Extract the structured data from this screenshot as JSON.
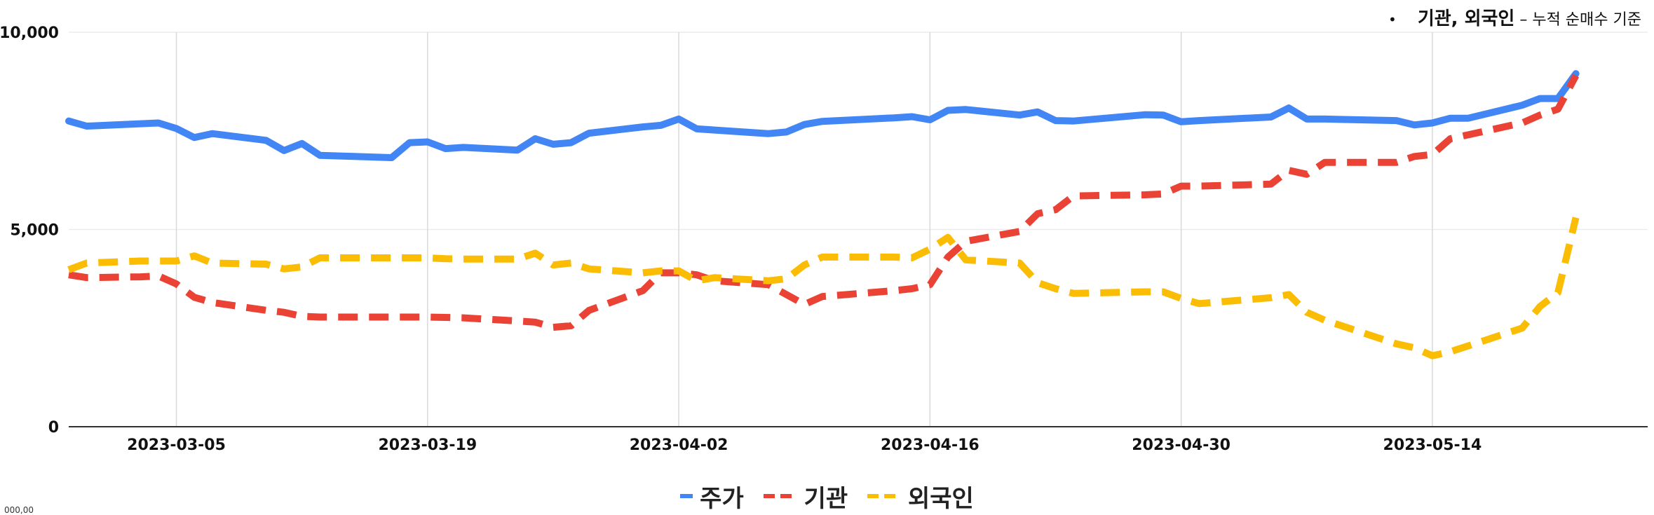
{
  "note": {
    "bullet": "•",
    "title": "기관, 외국인",
    "subtitle": " – 누적 순매수 기준"
  },
  "corner_text": "000,00",
  "colors": {
    "price": "#4285f4",
    "institution": "#ea4335",
    "foreign": "#fbbc04"
  },
  "chart_data": {
    "type": "line",
    "ylim": [
      0,
      10000
    ],
    "yticks": [
      "0",
      "5,000",
      "10,000"
    ],
    "ytick_values": [
      0,
      5000,
      10000
    ],
    "xlim": [
      "2023-02-27",
      "2023-05-26"
    ],
    "xtick_labels": [
      "2023-03-05",
      "2023-03-19",
      "2023-04-02",
      "2023-04-16",
      "2023-04-30",
      "2023-05-14"
    ],
    "grid": true,
    "legend": "bottom",
    "series": [
      {
        "name": "주가",
        "style": "solid",
        "points": [
          [
            "2023-02-27",
            7750
          ],
          [
            "2023-02-28",
            7620
          ],
          [
            "2023-03-03",
            7680
          ],
          [
            "2023-03-04",
            7700
          ],
          [
            "2023-03-05",
            7560
          ],
          [
            "2023-03-06",
            7330
          ],
          [
            "2023-03-07",
            7430
          ],
          [
            "2023-03-10",
            7260
          ],
          [
            "2023-03-11",
            7000
          ],
          [
            "2023-03-12",
            7180
          ],
          [
            "2023-03-13",
            6880
          ],
          [
            "2023-03-17",
            6820
          ],
          [
            "2023-03-18",
            7200
          ],
          [
            "2023-03-19",
            7220
          ],
          [
            "2023-03-20",
            7050
          ],
          [
            "2023-03-21",
            7080
          ],
          [
            "2023-03-24",
            7010
          ],
          [
            "2023-03-25",
            7300
          ],
          [
            "2023-03-26",
            7160
          ],
          [
            "2023-03-27",
            7200
          ],
          [
            "2023-03-28",
            7440
          ],
          [
            "2023-03-31",
            7600
          ],
          [
            "2023-04-01",
            7640
          ],
          [
            "2023-04-02",
            7800
          ],
          [
            "2023-04-03",
            7550
          ],
          [
            "2023-04-04",
            7520
          ],
          [
            "2023-04-07",
            7430
          ],
          [
            "2023-04-08",
            7470
          ],
          [
            "2023-04-09",
            7660
          ],
          [
            "2023-04-10",
            7740
          ],
          [
            "2023-04-14",
            7830
          ],
          [
            "2023-04-15",
            7860
          ],
          [
            "2023-04-16",
            7780
          ],
          [
            "2023-04-17",
            8020
          ],
          [
            "2023-04-18",
            8040
          ],
          [
            "2023-04-21",
            7900
          ],
          [
            "2023-04-22",
            7980
          ],
          [
            "2023-04-23",
            7760
          ],
          [
            "2023-04-24",
            7750
          ],
          [
            "2023-04-28",
            7910
          ],
          [
            "2023-04-29",
            7900
          ],
          [
            "2023-04-30",
            7730
          ],
          [
            "2023-05-01",
            7760
          ],
          [
            "2023-05-05",
            7850
          ],
          [
            "2023-05-06",
            8080
          ],
          [
            "2023-05-07",
            7800
          ],
          [
            "2023-05-08",
            7800
          ],
          [
            "2023-05-12",
            7760
          ],
          [
            "2023-05-13",
            7650
          ],
          [
            "2023-05-14",
            7700
          ],
          [
            "2023-05-15",
            7820
          ],
          [
            "2023-05-16",
            7820
          ],
          [
            "2023-05-19",
            8150
          ],
          [
            "2023-05-20",
            8320
          ],
          [
            "2023-05-21",
            8320
          ],
          [
            "2023-05-22",
            8950
          ]
        ]
      },
      {
        "name": "기관",
        "style": "dashed",
        "points": [
          [
            "2023-02-27",
            3850
          ],
          [
            "2023-02-28",
            3780
          ],
          [
            "2023-03-03",
            3800
          ],
          [
            "2023-03-04",
            3820
          ],
          [
            "2023-03-05",
            3620
          ],
          [
            "2023-03-06",
            3280
          ],
          [
            "2023-03-07",
            3150
          ],
          [
            "2023-03-10",
            2950
          ],
          [
            "2023-03-11",
            2900
          ],
          [
            "2023-03-12",
            2800
          ],
          [
            "2023-03-13",
            2780
          ],
          [
            "2023-03-17",
            2780
          ],
          [
            "2023-03-18",
            2780
          ],
          [
            "2023-03-19",
            2780
          ],
          [
            "2023-03-20",
            2770
          ],
          [
            "2023-03-21",
            2760
          ],
          [
            "2023-03-24",
            2680
          ],
          [
            "2023-03-25",
            2650
          ],
          [
            "2023-03-26",
            2520
          ],
          [
            "2023-03-27",
            2560
          ],
          [
            "2023-03-28",
            2950
          ],
          [
            "2023-03-31",
            3450
          ],
          [
            "2023-04-01",
            3900
          ],
          [
            "2023-04-02",
            3900
          ],
          [
            "2023-04-03",
            3850
          ],
          [
            "2023-04-04",
            3700
          ],
          [
            "2023-04-07",
            3600
          ],
          [
            "2023-04-08",
            3350
          ],
          [
            "2023-04-09",
            3100
          ],
          [
            "2023-04-10",
            3300
          ],
          [
            "2023-04-14",
            3450
          ],
          [
            "2023-04-15",
            3500
          ],
          [
            "2023-04-16",
            3600
          ],
          [
            "2023-04-17",
            4300
          ],
          [
            "2023-04-18",
            4700
          ],
          [
            "2023-04-21",
            4950
          ],
          [
            "2023-04-22",
            5400
          ],
          [
            "2023-04-23",
            5500
          ],
          [
            "2023-04-24",
            5850
          ],
          [
            "2023-04-28",
            5880
          ],
          [
            "2023-04-29",
            5900
          ],
          [
            "2023-04-30",
            6100
          ],
          [
            "2023-05-01",
            6100
          ],
          [
            "2023-05-05",
            6150
          ],
          [
            "2023-05-06",
            6500
          ],
          [
            "2023-05-07",
            6400
          ],
          [
            "2023-05-08",
            6700
          ],
          [
            "2023-05-12",
            6700
          ],
          [
            "2023-05-13",
            6850
          ],
          [
            "2023-05-14",
            6900
          ],
          [
            "2023-05-15",
            7300
          ],
          [
            "2023-05-16",
            7400
          ],
          [
            "2023-05-19",
            7700
          ],
          [
            "2023-05-20",
            7900
          ],
          [
            "2023-05-21",
            8050
          ],
          [
            "2023-05-22",
            8900
          ]
        ]
      },
      {
        "name": "외국인",
        "style": "dashed",
        "points": [
          [
            "2023-02-27",
            3980
          ],
          [
            "2023-02-28",
            4150
          ],
          [
            "2023-03-03",
            4200
          ],
          [
            "2023-03-04",
            4200
          ],
          [
            "2023-03-05",
            4200
          ],
          [
            "2023-03-06",
            4330
          ],
          [
            "2023-03-07",
            4150
          ],
          [
            "2023-03-10",
            4120
          ],
          [
            "2023-03-11",
            4000
          ],
          [
            "2023-03-12",
            4050
          ],
          [
            "2023-03-13",
            4280
          ],
          [
            "2023-03-17",
            4280
          ],
          [
            "2023-03-18",
            4280
          ],
          [
            "2023-03-19",
            4280
          ],
          [
            "2023-03-20",
            4260
          ],
          [
            "2023-03-21",
            4250
          ],
          [
            "2023-03-24",
            4250
          ],
          [
            "2023-03-25",
            4400
          ],
          [
            "2023-03-26",
            4100
          ],
          [
            "2023-03-27",
            4150
          ],
          [
            "2023-03-28",
            4000
          ],
          [
            "2023-03-31",
            3900
          ],
          [
            "2023-04-01",
            3950
          ],
          [
            "2023-04-02",
            3950
          ],
          [
            "2023-04-03",
            3700
          ],
          [
            "2023-04-04",
            3780
          ],
          [
            "2023-04-07",
            3700
          ],
          [
            "2023-04-08",
            3750
          ],
          [
            "2023-04-09",
            4100
          ],
          [
            "2023-04-10",
            4300
          ],
          [
            "2023-04-14",
            4300
          ],
          [
            "2023-04-15",
            4280
          ],
          [
            "2023-04-16",
            4500
          ],
          [
            "2023-04-17",
            4800
          ],
          [
            "2023-04-18",
            4230
          ],
          [
            "2023-04-21",
            4150
          ],
          [
            "2023-04-22",
            3650
          ],
          [
            "2023-04-23",
            3500
          ],
          [
            "2023-04-24",
            3380
          ],
          [
            "2023-04-28",
            3420
          ],
          [
            "2023-04-29",
            3420
          ],
          [
            "2023-04-30",
            3250
          ],
          [
            "2023-05-01",
            3120
          ],
          [
            "2023-05-05",
            3270
          ],
          [
            "2023-05-06",
            3350
          ],
          [
            "2023-05-07",
            2900
          ],
          [
            "2023-05-08",
            2700
          ],
          [
            "2023-05-12",
            2100
          ],
          [
            "2023-05-13",
            2000
          ],
          [
            "2023-05-14",
            1800
          ],
          [
            "2023-05-15",
            1900
          ],
          [
            "2023-05-16",
            2050
          ],
          [
            "2023-05-19",
            2500
          ],
          [
            "2023-05-20",
            3050
          ],
          [
            "2023-05-21",
            3400
          ],
          [
            "2023-05-22",
            5300
          ]
        ]
      }
    ]
  }
}
